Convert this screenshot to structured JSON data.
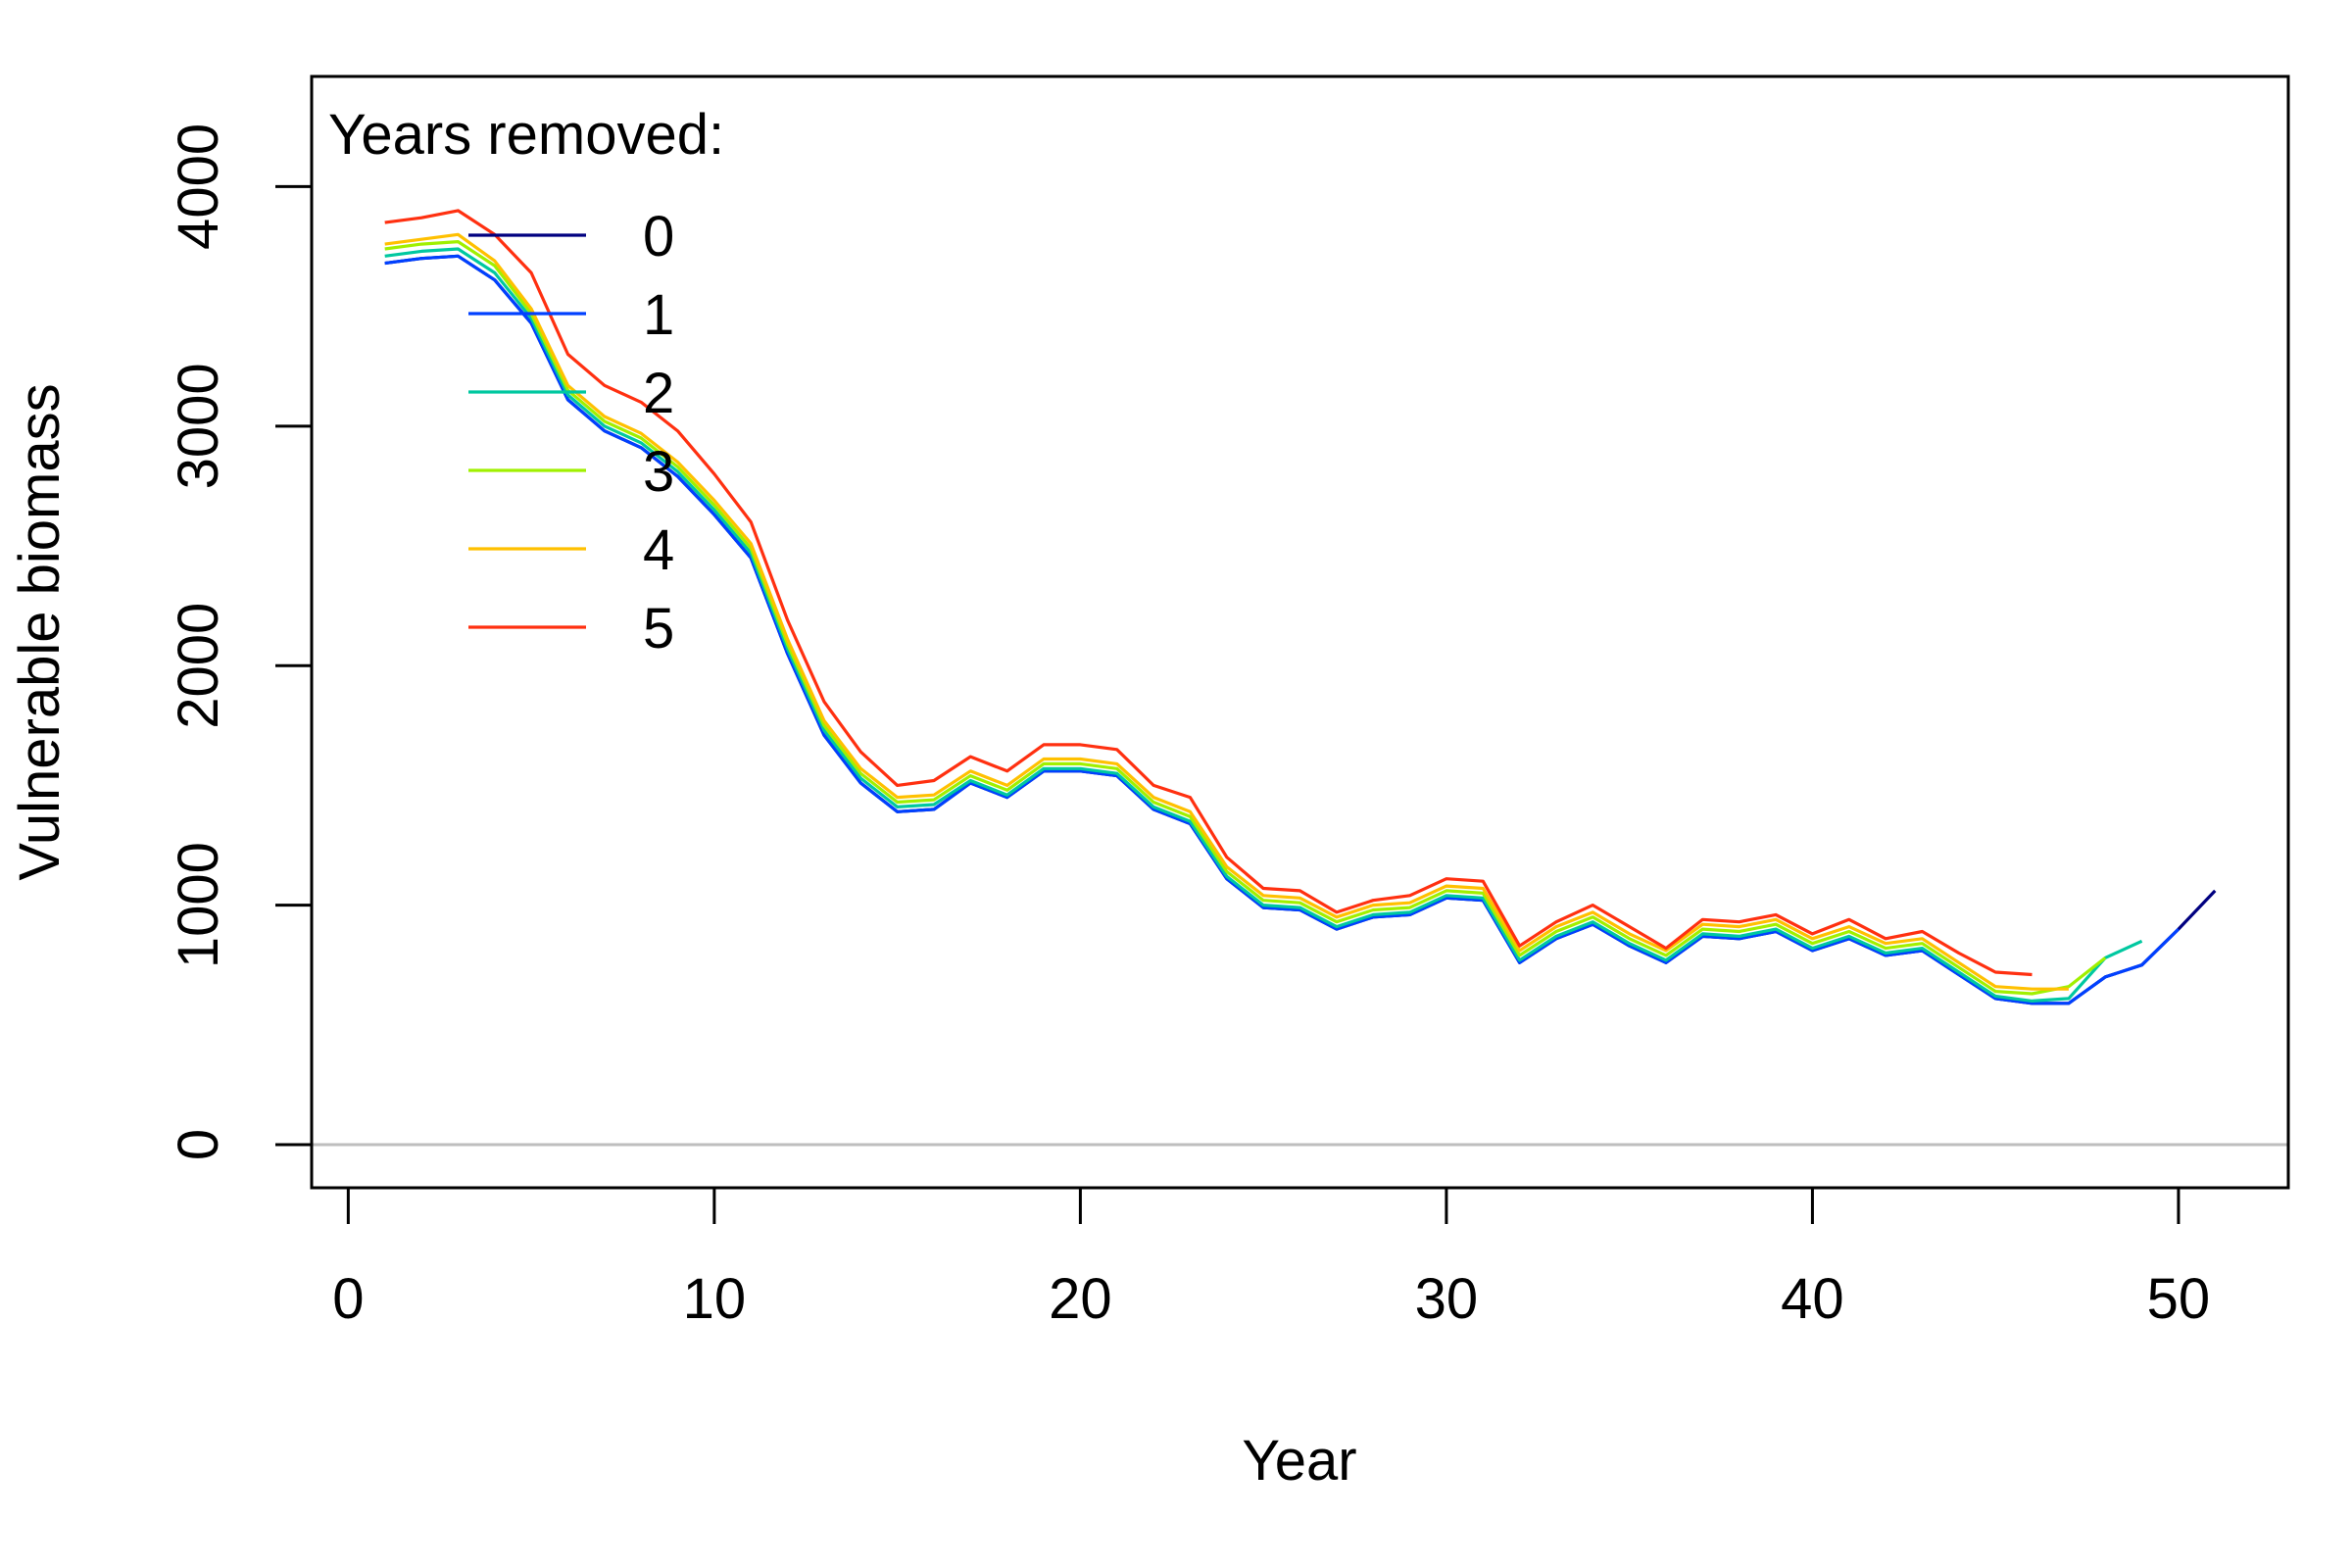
{
  "chart_data": {
    "type": "line",
    "title": "",
    "xlabel": "Year",
    "ylabel": "Vulnerable biomass",
    "xlim": [
      -1,
      53
    ],
    "ylim": [
      -180,
      4460
    ],
    "x_ticks": [
      0,
      10,
      20,
      30,
      40,
      50
    ],
    "y_ticks": [
      0,
      1000,
      2000,
      3000,
      4000
    ],
    "x_tick_labels": [
      "0",
      "10",
      "20",
      "30",
      "40",
      "50"
    ],
    "y_tick_labels": [
      "0",
      "1000",
      "2000",
      "3000",
      "4000"
    ],
    "reference_line": {
      "y": 0,
      "color": "#bebebe"
    },
    "legend": {
      "title": "Years removed:",
      "position": "top-left"
    },
    "grid": false,
    "series": [
      {
        "name": "0",
        "color": "#000080",
        "x": [
          1,
          2,
          3,
          4,
          5,
          6,
          7,
          8,
          9,
          10,
          11,
          12,
          13,
          14,
          15,
          16,
          17,
          18,
          19,
          20,
          21,
          22,
          23,
          24,
          25,
          26,
          27,
          28,
          29,
          30,
          31,
          32,
          33,
          34,
          35,
          36,
          37,
          38,
          39,
          40,
          41,
          42,
          43,
          44,
          45,
          46,
          47,
          48,
          49,
          50,
          51
        ],
        "y": [
          3680,
          3700,
          3710,
          3610,
          3430,
          3110,
          2980,
          2910,
          2790,
          2630,
          2450,
          2050,
          1710,
          1510,
          1390,
          1400,
          1510,
          1450,
          1560,
          1560,
          1540,
          1400,
          1340,
          1110,
          990,
          980,
          900,
          950,
          960,
          1030,
          1020,
          760,
          860,
          920,
          830,
          760,
          870,
          860,
          890,
          810,
          860,
          790,
          810,
          710,
          610,
          590,
          590,
          700,
          750,
          900,
          1060
        ]
      },
      {
        "name": "1",
        "color": "#0040ff",
        "x": [
          1,
          2,
          3,
          4,
          5,
          6,
          7,
          8,
          9,
          10,
          11,
          12,
          13,
          14,
          15,
          16,
          17,
          18,
          19,
          20,
          21,
          22,
          23,
          24,
          25,
          26,
          27,
          28,
          29,
          30,
          31,
          32,
          33,
          34,
          35,
          36,
          37,
          38,
          39,
          40,
          41,
          42,
          43,
          44,
          45,
          46,
          47,
          48,
          49,
          50
        ],
        "y": [
          3680,
          3700,
          3710,
          3610,
          3430,
          3110,
          2980,
          2910,
          2790,
          2630,
          2450,
          2050,
          1710,
          1510,
          1390,
          1400,
          1510,
          1450,
          1560,
          1560,
          1540,
          1400,
          1340,
          1110,
          990,
          980,
          900,
          950,
          960,
          1030,
          1020,
          760,
          860,
          920,
          830,
          760,
          870,
          860,
          890,
          810,
          860,
          790,
          810,
          710,
          610,
          590,
          590,
          700,
          750,
          900
        ]
      },
      {
        "name": "2",
        "color": "#00c8a0",
        "x": [
          1,
          2,
          3,
          4,
          5,
          6,
          7,
          8,
          9,
          10,
          11,
          12,
          13,
          14,
          15,
          16,
          17,
          18,
          19,
          20,
          21,
          22,
          23,
          24,
          25,
          26,
          27,
          28,
          29,
          30,
          31,
          32,
          33,
          34,
          35,
          36,
          37,
          38,
          39,
          40,
          41,
          42,
          43,
          44,
          45,
          46,
          47,
          48,
          49
        ],
        "y": [
          3710,
          3730,
          3740,
          3640,
          3450,
          3130,
          3000,
          2930,
          2810,
          2650,
          2470,
          2070,
          1730,
          1530,
          1410,
          1420,
          1520,
          1460,
          1570,
          1570,
          1550,
          1410,
          1350,
          1120,
          1000,
          990,
          910,
          960,
          970,
          1040,
          1030,
          770,
          870,
          930,
          840,
          770,
          880,
          870,
          900,
          820,
          870,
          800,
          820,
          720,
          620,
          600,
          610,
          780,
          850
        ]
      },
      {
        "name": "3",
        "color": "#a0f000",
        "x": [
          1,
          2,
          3,
          4,
          5,
          6,
          7,
          8,
          9,
          10,
          11,
          12,
          13,
          14,
          15,
          16,
          17,
          18,
          19,
          20,
          21,
          22,
          23,
          24,
          25,
          26,
          27,
          28,
          29,
          30,
          31,
          32,
          33,
          34,
          35,
          36,
          37,
          38,
          39,
          40,
          41,
          42,
          43,
          44,
          45,
          46,
          47,
          48
        ],
        "y": [
          3740,
          3760,
          3770,
          3670,
          3470,
          3150,
          3020,
          2950,
          2830,
          2670,
          2490,
          2090,
          1750,
          1550,
          1430,
          1440,
          1540,
          1480,
          1590,
          1590,
          1570,
          1430,
          1370,
          1140,
          1020,
          1010,
          930,
          980,
          990,
          1060,
          1050,
          790,
          890,
          950,
          860,
          790,
          900,
          890,
          920,
          840,
          890,
          820,
          840,
          740,
          640,
          630,
          660,
          780
        ]
      },
      {
        "name": "4",
        "color": "#ffc000",
        "x": [
          1,
          2,
          3,
          4,
          5,
          6,
          7,
          8,
          9,
          10,
          11,
          12,
          13,
          14,
          15,
          16,
          17,
          18,
          19,
          20,
          21,
          22,
          23,
          24,
          25,
          26,
          27,
          28,
          29,
          30,
          31,
          32,
          33,
          34,
          35,
          36,
          37,
          38,
          39,
          40,
          41,
          42,
          43,
          44,
          45,
          46,
          47
        ],
        "y": [
          3760,
          3780,
          3800,
          3690,
          3490,
          3170,
          3040,
          2970,
          2850,
          2690,
          2510,
          2110,
          1770,
          1570,
          1450,
          1460,
          1560,
          1500,
          1610,
          1610,
          1590,
          1450,
          1390,
          1160,
          1040,
          1030,
          950,
          1000,
          1010,
          1080,
          1070,
          810,
          910,
          970,
          880,
          810,
          920,
          910,
          940,
          860,
          910,
          840,
          860,
          760,
          660,
          650,
          650
        ]
      },
      {
        "name": "5",
        "color": "#ff3010",
        "x": [
          1,
          2,
          3,
          4,
          5,
          6,
          7,
          8,
          9,
          10,
          11,
          12,
          13,
          14,
          15,
          16,
          17,
          18,
          19,
          20,
          21,
          22,
          23,
          24,
          25,
          26,
          27,
          28,
          29,
          30,
          31,
          32,
          33,
          34,
          35,
          36,
          37,
          38,
          39,
          40,
          41,
          42,
          43,
          44,
          45,
          46
        ],
        "y": [
          3850,
          3870,
          3900,
          3800,
          3640,
          3300,
          3170,
          3100,
          2980,
          2800,
          2600,
          2190,
          1850,
          1640,
          1500,
          1520,
          1620,
          1560,
          1670,
          1670,
          1650,
          1500,
          1450,
          1200,
          1070,
          1060,
          970,
          1020,
          1040,
          1110,
          1100,
          830,
          930,
          1000,
          910,
          820,
          940,
          930,
          960,
          880,
          940,
          860,
          890,
          800,
          720,
          710
        ]
      }
    ]
  }
}
